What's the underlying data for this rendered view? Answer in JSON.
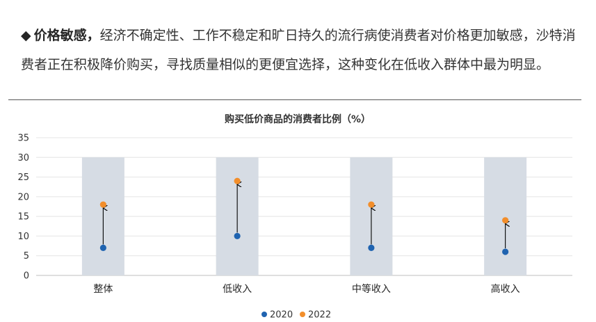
{
  "text": {
    "bullet": "◆",
    "lead": "价格敏感，",
    "body": "经济不确定性、工作不稳定和旷日持久的流行病使消费者对价格更加敏感，沙特消费者正在积极降价购买，寻找质量相似的更便宜选择，这种变化在低收入群体中最为明显。"
  },
  "chart_data": {
    "type": "scatter",
    "title": "购买低价商品的消费者比例（%）",
    "categories": [
      "整体",
      "低收入",
      "中等收入",
      "高收入"
    ],
    "series": [
      {
        "name": "2020",
        "values": [
          7,
          10,
          7,
          6
        ],
        "color": "#1f63b0"
      },
      {
        "name": "2022",
        "values": [
          18,
          24,
          18,
          14
        ],
        "color": "#f28e2b"
      }
    ],
    "ylim": [
      0,
      35
    ],
    "yticks": [
      0,
      5,
      10,
      15,
      20,
      25,
      30,
      35
    ],
    "band_value": 30,
    "band_color": "#d6dce4",
    "grid": true,
    "legend": "bottom-center",
    "arrows": "2020-to-2022"
  }
}
